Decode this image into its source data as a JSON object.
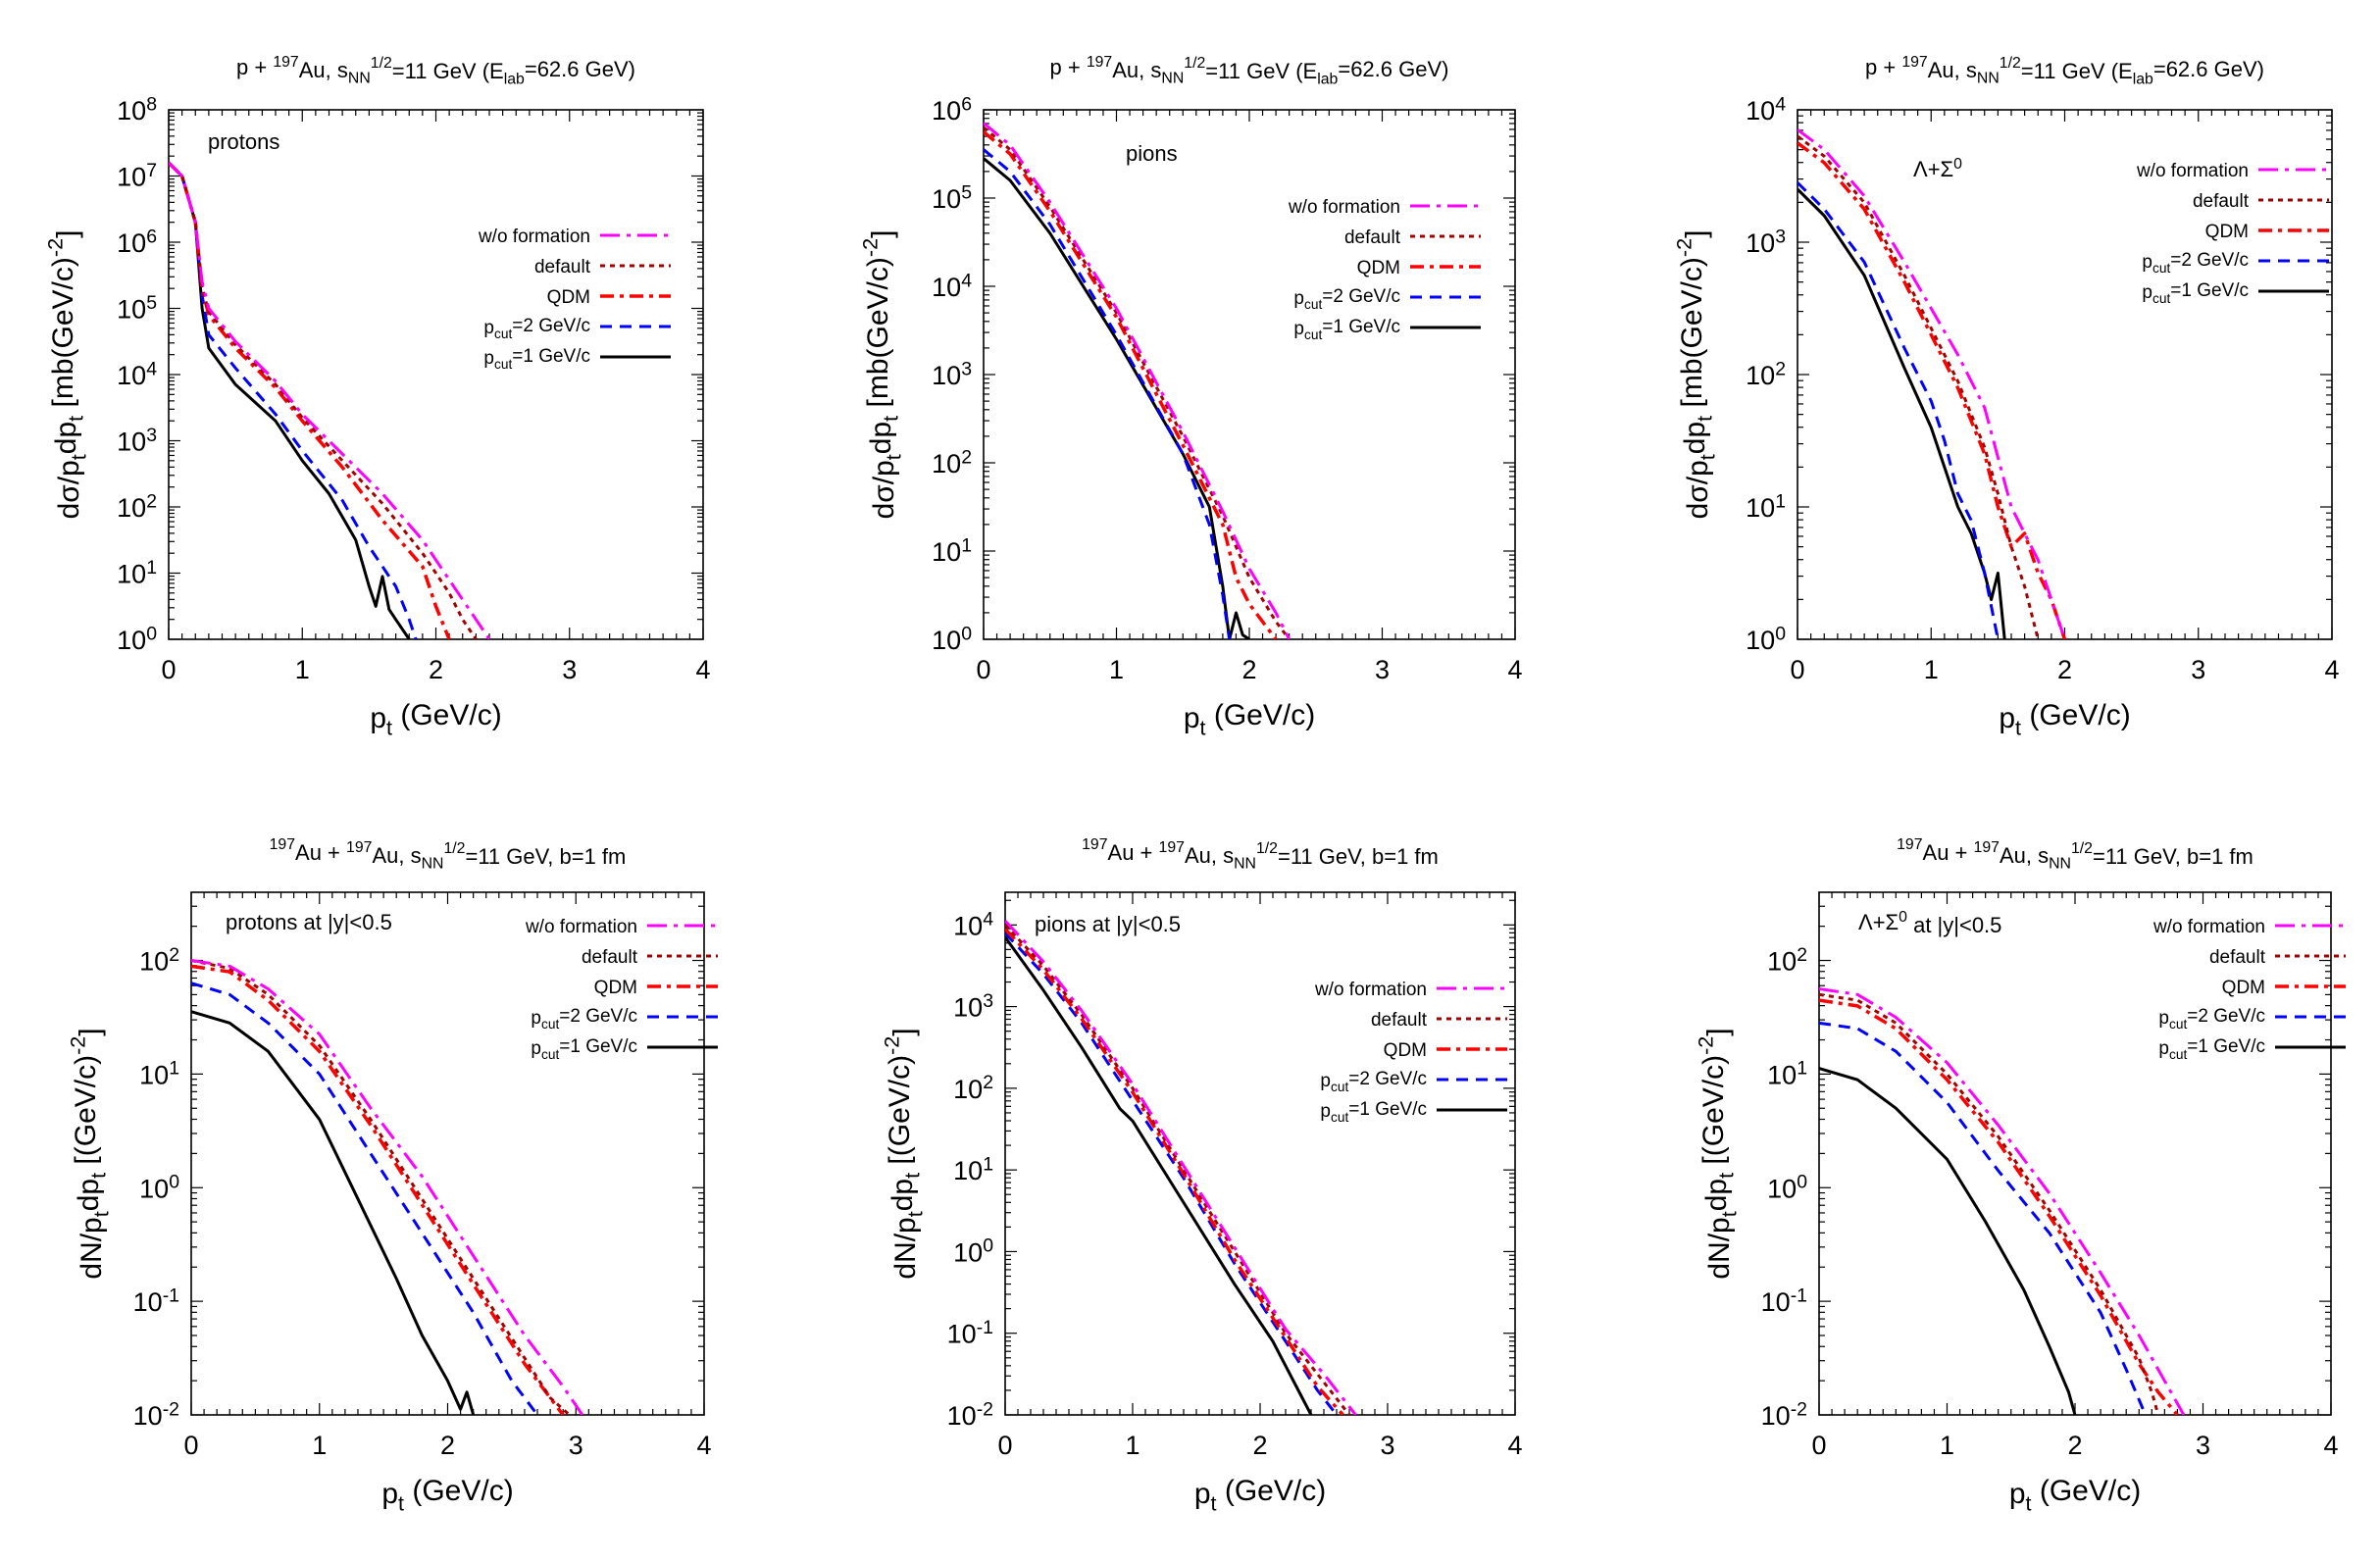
{
  "legend_styles": [
    {
      "name": "w/o formation",
      "color": "#ff00ff",
      "dash": "20,7,4,7",
      "width": 3
    },
    {
      "name": "default",
      "color": "#a40000",
      "dash": "5,5",
      "width": 3
    },
    {
      "name": "QDM",
      "color": "#ff0000",
      "dash": "14,6,4,6",
      "width": 3.5
    },
    {
      "name": "p_cut=2 GeV/c",
      "color": "#0000ff",
      "dash": "12,8",
      "width": 3
    },
    {
      "name": "p_cut=1 GeV/c",
      "color": "#000000",
      "dash": "",
      "width": 3
    }
  ],
  "chart_data": [
    {
      "type": "line",
      "id": "pAu-protons",
      "title": "p + 197Au, sNN1/2=11 GeV (Elab=62.6 GeV)",
      "annotation": "protons",
      "xlabel": "pt (GeV/c)",
      "ylabel": "dσ/ptdpt [mb(GeV/c)-2]",
      "xlim": [
        0,
        4
      ],
      "ylog": true,
      "ydec": [
        0,
        8
      ],
      "xticks": [
        "0",
        "1",
        "2",
        "3",
        "4"
      ],
      "yticks": [
        "10^0",
        "10^1",
        "10^2",
        "10^3",
        "10^4",
        "10^5",
        "10^6",
        "10^7",
        "10^8"
      ],
      "legend": [
        "w/o formation",
        "default",
        "QDM",
        "p_cut=2 GeV/c",
        "p_cut=1 GeV/c"
      ],
      "series": [
        {
          "name": "w/o formation",
          "x": [
            0,
            0.1,
            0.2,
            0.25,
            0.3,
            0.5,
            0.8,
            1.0,
            1.3,
            1.6,
            1.9,
            2.1,
            2.3,
            2.4
          ],
          "y": [
            7.2,
            7.0,
            6.3,
            5.4,
            5.0,
            4.5,
            3.9,
            3.4,
            2.8,
            2.2,
            1.5,
            0.9,
            0.3,
            0.0
          ]
        },
        {
          "name": "default",
          "x": [
            0,
            0.1,
            0.2,
            0.25,
            0.3,
            0.5,
            0.8,
            1.0,
            1.3,
            1.6,
            1.9,
            2.1,
            2.2,
            2.3
          ],
          "y": [
            7.2,
            7.0,
            6.3,
            5.3,
            4.95,
            4.45,
            3.85,
            3.35,
            2.7,
            2.05,
            1.3,
            0.7,
            0.3,
            0.0
          ]
        },
        {
          "name": "QDM",
          "x": [
            0,
            0.1,
            0.2,
            0.25,
            0.3,
            0.5,
            0.8,
            1.0,
            1.3,
            1.6,
            1.9,
            2.0,
            2.1
          ],
          "y": [
            7.2,
            7.0,
            6.3,
            5.3,
            4.9,
            4.4,
            3.8,
            3.3,
            2.6,
            1.8,
            1.1,
            0.5,
            0.0
          ]
        },
        {
          "name": "p_cut=2 GeV/c",
          "x": [
            0,
            0.1,
            0.2,
            0.25,
            0.3,
            0.5,
            0.8,
            1.0,
            1.3,
            1.5,
            1.7,
            1.8,
            1.85
          ],
          "y": [
            7.2,
            7.0,
            6.3,
            5.2,
            4.6,
            4.1,
            3.4,
            2.85,
            2.1,
            1.4,
            0.8,
            0.3,
            0.0
          ]
        },
        {
          "name": "p_cut=1 GeV/c",
          "x": [
            0,
            0.1,
            0.2,
            0.25,
            0.3,
            0.5,
            0.8,
            1.0,
            1.2,
            1.4,
            1.5,
            1.55,
            1.6,
            1.65,
            1.7,
            1.8
          ],
          "y": [
            7.2,
            7.0,
            6.3,
            5.0,
            4.4,
            3.85,
            3.3,
            2.7,
            2.2,
            1.5,
            0.8,
            0.5,
            0.95,
            0.45,
            0.3,
            0.0
          ]
        }
      ]
    },
    {
      "type": "line",
      "id": "pAu-pions",
      "title": "p + 197Au, sNN1/2=11 GeV (Elab=62.6 GeV)",
      "annotation": "pions",
      "xlabel": "pt (GeV/c)",
      "ylabel": "dσ/ptdpt [mb(GeV/c)-2]",
      "xlim": [
        0,
        4
      ],
      "ylog": true,
      "ydec": [
        0,
        6
      ],
      "xticks": [
        "0",
        "1",
        "2",
        "3",
        "4"
      ],
      "yticks": [
        "10^0",
        "10^1",
        "10^2",
        "10^3",
        "10^4",
        "10^5",
        "10^6"
      ],
      "legend": [
        "w/o formation",
        "default",
        "QDM",
        "p_cut=2 GeV/c",
        "p_cut=1 GeV/c"
      ],
      "series": [
        {
          "name": "w/o formation",
          "x": [
            0,
            0.2,
            0.5,
            1.0,
            1.5,
            1.8,
            2.0,
            2.2,
            2.3
          ],
          "y": [
            5.85,
            5.6,
            4.95,
            3.75,
            2.35,
            1.45,
            0.8,
            0.3,
            0.0
          ]
        },
        {
          "name": "default",
          "x": [
            0,
            0.2,
            0.5,
            1.0,
            1.5,
            1.8,
            2.0,
            2.2,
            2.3
          ],
          "y": [
            5.8,
            5.55,
            4.9,
            3.7,
            2.3,
            1.4,
            0.7,
            0.2,
            0.0
          ]
        },
        {
          "name": "QDM",
          "x": [
            0,
            0.2,
            0.5,
            1.0,
            1.5,
            1.8,
            1.9,
            2.0,
            2.1,
            2.2
          ],
          "y": [
            5.75,
            5.5,
            4.85,
            3.65,
            2.2,
            1.3,
            0.7,
            0.4,
            0.2,
            0.0
          ]
        },
        {
          "name": "p_cut=2 GeV/c",
          "x": [
            0,
            0.2,
            0.5,
            1.0,
            1.5,
            1.7,
            1.8,
            1.85
          ],
          "y": [
            5.55,
            5.3,
            4.7,
            3.45,
            2.1,
            1.3,
            0.5,
            0.0
          ]
        },
        {
          "name": "p_cut=1 GeV/c",
          "x": [
            0,
            0.2,
            0.5,
            1.0,
            1.5,
            1.7,
            1.8,
            1.85,
            1.9,
            1.95,
            2.0
          ],
          "y": [
            5.45,
            5.2,
            4.6,
            3.4,
            2.1,
            1.5,
            0.6,
            0.0,
            0.3,
            0.05,
            0.0
          ]
        }
      ]
    },
    {
      "type": "line",
      "id": "pAu-lambda",
      "title": "p + 197Au, sNN1/2=11 GeV (Elab=62.6 GeV)",
      "annotation": "Λ+Σ0",
      "xlabel": "pt (GeV/c)",
      "ylabel": "dσ/ptdpt [mb(GeV/c)-2]",
      "xlim": [
        0,
        4
      ],
      "ylog": true,
      "ydec": [
        0,
        4
      ],
      "xticks": [
        "0",
        "1",
        "2",
        "3",
        "4"
      ],
      "yticks": [
        "10^0",
        "10^1",
        "10^2",
        "10^3",
        "10^4"
      ],
      "legend": [
        "w/o formation",
        "default",
        "QDM",
        "p_cut=2 GeV/c",
        "p_cut=1 GeV/c"
      ],
      "series": [
        {
          "name": "w/o formation",
          "x": [
            0,
            0.2,
            0.5,
            0.8,
            1.0,
            1.2,
            1.4,
            1.6,
            1.7,
            1.8,
            2.0
          ],
          "y": [
            3.85,
            3.7,
            3.35,
            2.85,
            2.5,
            2.15,
            1.75,
            1.0,
            0.8,
            0.6,
            0.0
          ]
        },
        {
          "name": "default",
          "x": [
            0,
            0.2,
            0.5,
            0.8,
            1.0,
            1.2,
            1.4,
            1.5,
            1.6,
            1.7,
            1.8
          ],
          "y": [
            3.8,
            3.65,
            3.3,
            2.75,
            2.35,
            1.95,
            1.45,
            1.1,
            0.7,
            0.4,
            0.0
          ]
        },
        {
          "name": "QDM",
          "x": [
            0,
            0.2,
            0.5,
            0.8,
            1.0,
            1.2,
            1.4,
            1.5,
            1.6,
            1.7,
            1.8,
            1.9,
            2.0
          ],
          "y": [
            3.75,
            3.6,
            3.25,
            2.7,
            2.3,
            1.9,
            1.4,
            1.0,
            0.7,
            0.8,
            0.5,
            0.3,
            0.0
          ]
        },
        {
          "name": "p_cut=2 GeV/c",
          "x": [
            0,
            0.2,
            0.5,
            0.8,
            1.0,
            1.1,
            1.2,
            1.3,
            1.4,
            1.5
          ],
          "y": [
            3.45,
            3.25,
            2.85,
            2.2,
            1.8,
            1.5,
            1.1,
            0.9,
            0.5,
            0.0
          ]
        },
        {
          "name": "p_cut=1 GeV/c",
          "x": [
            0,
            0.2,
            0.5,
            0.8,
            1.0,
            1.1,
            1.2,
            1.3,
            1.4,
            1.45,
            1.5,
            1.55
          ],
          "y": [
            3.4,
            3.2,
            2.75,
            2.05,
            1.6,
            1.3,
            1.0,
            0.8,
            0.5,
            0.3,
            0.5,
            0.0
          ]
        }
      ]
    },
    {
      "type": "line",
      "id": "AuAu-protons",
      "title": "197Au + 197Au, sNN1/2=11 GeV, b=1 fm",
      "annotation": "protons at |y|<0.5",
      "xlabel": "pt (GeV/c)",
      "ylabel": "dN/ptdpt [(GeV/c)-2]",
      "xlim": [
        0,
        4
      ],
      "ylog": true,
      "ydec": [
        -2,
        2.6
      ],
      "xticks": [
        "0",
        "1",
        "2",
        "3",
        "4"
      ],
      "yticks": [
        "10^-2",
        "10^-1",
        "10^0",
        "10^1",
        "10^2"
      ],
      "legend": [
        "w/o formation",
        "default",
        "QDM",
        "p_cut=2 GeV/c",
        "p_cut=1 GeV/c"
      ],
      "series": [
        {
          "name": "w/o formation",
          "x": [
            0,
            0.3,
            0.6,
            1.0,
            1.4,
            1.8,
            2.2,
            2.6,
            2.9,
            3.05
          ],
          "y": [
            2.0,
            1.95,
            1.75,
            1.35,
            0.7,
            0.1,
            -0.6,
            -1.3,
            -1.75,
            -2.0
          ]
        },
        {
          "name": "default",
          "x": [
            0,
            0.3,
            0.6,
            1.0,
            1.4,
            1.8,
            2.2,
            2.6,
            2.8,
            2.95
          ],
          "y": [
            2.0,
            1.93,
            1.7,
            1.25,
            0.6,
            -0.1,
            -0.8,
            -1.5,
            -1.85,
            -2.0
          ]
        },
        {
          "name": "QDM",
          "x": [
            0,
            0.3,
            0.6,
            1.0,
            1.4,
            1.8,
            2.2,
            2.6,
            2.8,
            2.9
          ],
          "y": [
            1.95,
            1.9,
            1.65,
            1.2,
            0.55,
            -0.15,
            -0.85,
            -1.55,
            -1.85,
            -2.0
          ]
        },
        {
          "name": "p_cut=2 GeV/c",
          "x": [
            0,
            0.3,
            0.6,
            1.0,
            1.4,
            1.8,
            2.2,
            2.5,
            2.7
          ],
          "y": [
            1.8,
            1.7,
            1.45,
            1.0,
            0.3,
            -0.4,
            -1.1,
            -1.7,
            -2.0
          ]
        },
        {
          "name": "p_cut=1 GeV/c",
          "x": [
            0,
            0.3,
            0.6,
            1.0,
            1.3,
            1.6,
            1.8,
            2.0,
            2.1,
            2.15,
            2.2
          ],
          "y": [
            1.55,
            1.45,
            1.2,
            0.6,
            -0.1,
            -0.8,
            -1.3,
            -1.7,
            -1.95,
            -1.8,
            -2.0
          ]
        }
      ]
    },
    {
      "type": "line",
      "id": "AuAu-pions",
      "title": "197Au + 197Au, sNN1/2=11 GeV, b=1 fm",
      "annotation": "pions at |y|<0.5",
      "xlabel": "pt (GeV/c)",
      "ylabel": "dN/ptdpt [(GeV/c)-2]",
      "xlim": [
        0,
        4
      ],
      "ylog": true,
      "ydec": [
        -2,
        4.4
      ],
      "xticks": [
        "0",
        "1",
        "2",
        "3",
        "4"
      ],
      "yticks": [
        "10^-2",
        "10^-1",
        "10^0",
        "10^1",
        "10^2",
        "10^3",
        "10^4"
      ],
      "legend": [
        "w/o formation",
        "default",
        "QDM",
        "p_cut=2 GeV/c",
        "p_cut=1 GeV/c"
      ],
      "series": [
        {
          "name": "w/o formation",
          "x": [
            0,
            0.3,
            0.6,
            1.0,
            1.4,
            1.8,
            2.2,
            2.5,
            2.75
          ],
          "y": [
            4.05,
            3.55,
            2.95,
            2.05,
            1.05,
            0.05,
            -0.95,
            -1.5,
            -2.0
          ]
        },
        {
          "name": "default",
          "x": [
            0,
            0.3,
            0.6,
            1.0,
            1.4,
            1.8,
            2.2,
            2.5,
            2.7
          ],
          "y": [
            4.0,
            3.5,
            2.9,
            2.0,
            1.0,
            0.0,
            -1.0,
            -1.6,
            -2.0
          ]
        },
        {
          "name": "QDM",
          "x": [
            0,
            0.3,
            0.6,
            1.0,
            1.4,
            1.8,
            2.2,
            2.45,
            2.65
          ],
          "y": [
            3.95,
            3.45,
            2.85,
            1.95,
            0.95,
            -0.1,
            -1.05,
            -1.65,
            -2.0
          ]
        },
        {
          "name": "p_cut=2 GeV/c",
          "x": [
            0,
            0.3,
            0.6,
            1.0,
            1.4,
            1.8,
            2.2,
            2.45,
            2.6
          ],
          "y": [
            3.9,
            3.4,
            2.8,
            1.85,
            0.9,
            -0.15,
            -1.1,
            -1.7,
            -2.0
          ]
        },
        {
          "name": "p_cut=1 GeV/c",
          "x": [
            0,
            0.3,
            0.6,
            0.9,
            1.0,
            1.4,
            1.8,
            2.1,
            2.3,
            2.4
          ],
          "y": [
            3.85,
            3.2,
            2.5,
            1.75,
            1.6,
            0.6,
            -0.4,
            -1.1,
            -1.7,
            -2.0
          ]
        }
      ]
    },
    {
      "type": "line",
      "id": "AuAu-lambda",
      "title": "197Au + 197Au, sNN1/2=11 GeV, b=1 fm",
      "annotation": "Λ+Σ0 at |y|<0.5",
      "xlabel": "pt (GeV/c)",
      "ylabel": "dN/ptdpt [(GeV/c)-2]",
      "xlim": [
        0,
        4
      ],
      "ylog": true,
      "ydec": [
        -2,
        2.6
      ],
      "xticks": [
        "0",
        "1",
        "2",
        "3",
        "4"
      ],
      "yticks": [
        "10^-2",
        "10^-1",
        "10^0",
        "10^1",
        "10^2"
      ],
      "legend": [
        "w/o formation",
        "default",
        "QDM",
        "p_cut=2 GeV/c",
        "p_cut=1 GeV/c"
      ],
      "series": [
        {
          "name": "w/o formation",
          "x": [
            0,
            0.3,
            0.6,
            1.0,
            1.4,
            1.8,
            2.2,
            2.5,
            2.7,
            2.85
          ],
          "y": [
            1.75,
            1.7,
            1.5,
            1.1,
            0.55,
            -0.05,
            -0.75,
            -1.3,
            -1.7,
            -2.0
          ]
        },
        {
          "name": "default",
          "x": [
            0,
            0.3,
            0.6,
            1.0,
            1.4,
            1.8,
            2.2,
            2.5,
            2.6,
            2.65
          ],
          "y": [
            1.7,
            1.65,
            1.45,
            1.0,
            0.45,
            -0.2,
            -0.9,
            -1.5,
            -1.8,
            -2.0
          ]
        },
        {
          "name": "QDM",
          "x": [
            0,
            0.3,
            0.6,
            1.0,
            1.4,
            1.8,
            2.2,
            2.5,
            2.65,
            2.8
          ],
          "y": [
            1.65,
            1.6,
            1.4,
            0.95,
            0.4,
            -0.25,
            -0.95,
            -1.55,
            -1.8,
            -2.0
          ]
        },
        {
          "name": "p_cut=2 GeV/c",
          "x": [
            0,
            0.3,
            0.6,
            1.0,
            1.4,
            1.8,
            2.2,
            2.4,
            2.55
          ],
          "y": [
            1.45,
            1.4,
            1.2,
            0.75,
            0.15,
            -0.4,
            -1.1,
            -1.6,
            -2.0
          ]
        },
        {
          "name": "p_cut=1 GeV/c",
          "x": [
            0,
            0.3,
            0.6,
            1.0,
            1.3,
            1.6,
            1.8,
            1.95,
            2.0
          ],
          "y": [
            1.05,
            0.95,
            0.7,
            0.25,
            -0.3,
            -0.9,
            -1.4,
            -1.8,
            -2.0
          ]
        }
      ]
    }
  ]
}
